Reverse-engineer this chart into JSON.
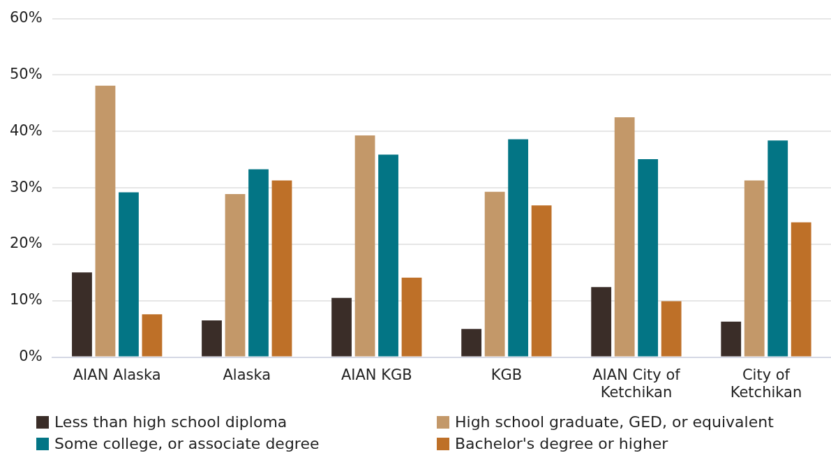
{
  "chart_data": {
    "type": "bar",
    "categories": [
      "AIAN Alaska",
      "Alaska",
      "AIAN KGB",
      "KGB",
      "AIAN City of Ketchikan",
      "City of Ketchikan"
    ],
    "series": [
      {
        "name": "Less than high school diploma",
        "color": "#3a2d28",
        "values": [
          15.0,
          6.5,
          10.5,
          5.0,
          12.4,
          6.3
        ]
      },
      {
        "name": "High school graduate, GED, or equivalent",
        "color": "#c39869",
        "values": [
          48.1,
          28.9,
          39.3,
          29.3,
          42.5,
          31.3
        ]
      },
      {
        "name": "Some college, or associate degree",
        "color": "#037585",
        "values": [
          29.2,
          33.3,
          35.9,
          38.6,
          35.1,
          38.4
        ]
      },
      {
        "name": "Bachelor's degree or higher",
        "color": "#be7028",
        "values": [
          7.6,
          31.3,
          14.1,
          26.9,
          9.9,
          23.9
        ]
      }
    ],
    "ylim": [
      0,
      60
    ],
    "yticks": [
      {
        "value": 0,
        "label": "0%"
      },
      {
        "value": 10,
        "label": "10%"
      },
      {
        "value": 20,
        "label": "20%"
      },
      {
        "value": 30,
        "label": "30%"
      },
      {
        "value": 40,
        "label": "40%"
      },
      {
        "value": 50,
        "label": "50%"
      },
      {
        "value": 60,
        "label": "60%"
      }
    ],
    "grid": "y",
    "legend": "bottom"
  }
}
